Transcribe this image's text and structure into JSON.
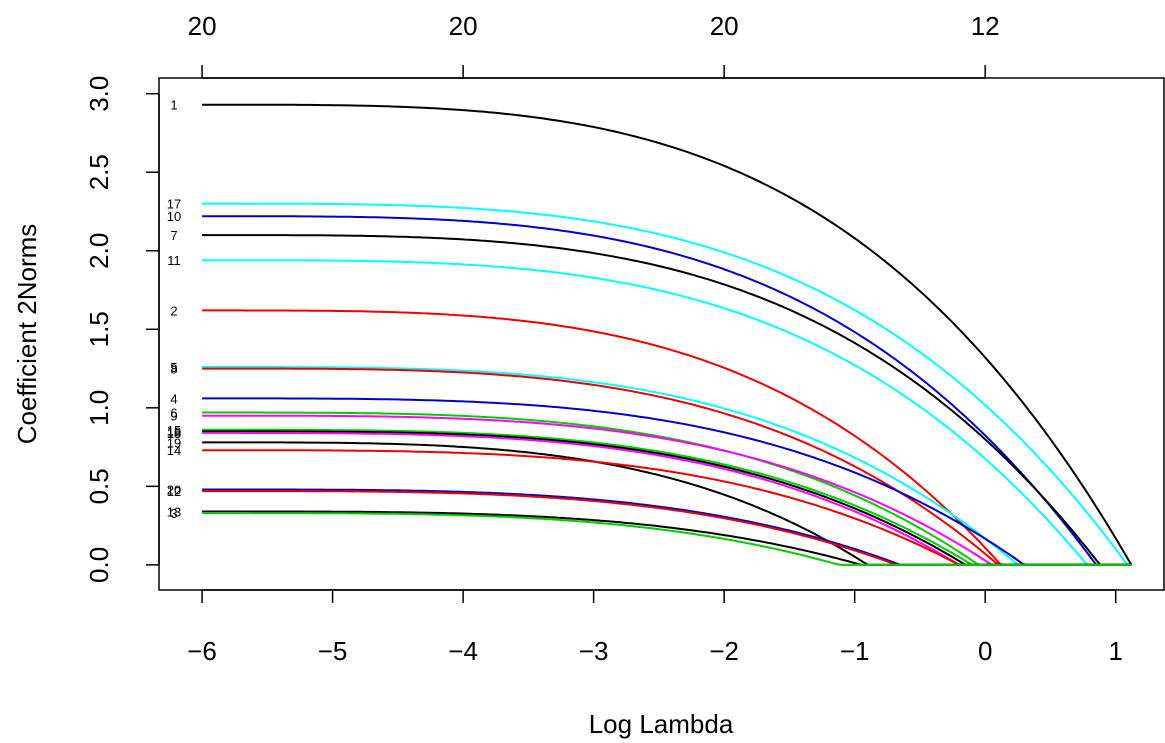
{
  "chart_data": {
    "type": "line",
    "title": "",
    "xlabel": "Log Lambda",
    "ylabel": "Coefficient 2Norms",
    "xlim": [
      -6.33,
      1.37
    ],
    "ylim": [
      -0.16,
      3.1
    ],
    "x_ticks": [
      -6,
      -5,
      -4,
      -3,
      -2,
      -1,
      0,
      1
    ],
    "x_tick_labels": [
      "−6",
      "−5",
      "−4",
      "−3",
      "−2",
      "−1",
      "0",
      "1"
    ],
    "y_ticks": [
      0.0,
      0.5,
      1.0,
      1.5,
      2.0,
      2.5,
      3.0
    ],
    "y_tick_labels": [
      "0.0",
      "0.5",
      "1.0",
      "1.5",
      "2.0",
      "2.5",
      "3.0"
    ],
    "top_axis": {
      "ticks_x": [
        -6,
        -4,
        -2,
        0
      ],
      "labels": [
        "20",
        "20",
        "20",
        "12"
      ]
    },
    "grid": false,
    "legend": "none",
    "x_range": [
      -6.0,
      1.12
    ],
    "series": [
      {
        "label": "1",
        "color": "#000000",
        "start": 2.93,
        "zero": 1.12
      },
      {
        "label": "17",
        "color": "#00FFFF",
        "start": 2.3,
        "zero": 1.09
      },
      {
        "label": "10",
        "color": "#0000CD",
        "start": 2.22,
        "zero": 0.85
      },
      {
        "label": "7",
        "color": "#000000",
        "start": 2.1,
        "zero": 0.88
      },
      {
        "label": "11",
        "color": "#00FFFF",
        "start": 1.94,
        "zero": 0.78
      },
      {
        "label": "2",
        "color": "#EE0000",
        "start": 1.62,
        "zero": 0.12
      },
      {
        "label": "5",
        "color": "#00FFFF",
        "start": 1.26,
        "zero": 0.25
      },
      {
        "label": "8",
        "color": "#EE0000",
        "start": 1.25,
        "zero": 0.1
      },
      {
        "label": "4",
        "color": "#0000CD",
        "start": 1.06,
        "zero": 0.3
      },
      {
        "label": "6",
        "color": "#00CD00",
        "start": 0.97,
        "zero": -0.05
      },
      {
        "label": "9",
        "color": "#FF00FF",
        "start": 0.95,
        "zero": 0.05
      },
      {
        "label": "15",
        "color": "#00CD00",
        "start": 0.86,
        "zero": -0.1
      },
      {
        "label": "16",
        "color": "#000000",
        "start": 0.85,
        "zero": -0.15
      },
      {
        "label": "18",
        "color": "#FF00FF",
        "start": 0.84,
        "zero": -0.2
      },
      {
        "label": "19",
        "color": "#000000",
        "start": 0.78,
        "zero": -0.9
      },
      {
        "label": "14",
        "color": "#EE0000",
        "start": 0.73,
        "zero": -0.2
      },
      {
        "label": "20",
        "color": "#0000CD",
        "start": 0.48,
        "zero": -0.65
      },
      {
        "label": "12",
        "color": "#EE0000",
        "start": 0.47,
        "zero": -0.68
      },
      {
        "label": "13",
        "color": "#000000",
        "start": 0.34,
        "zero": -0.95
      },
      {
        "label": "3",
        "color": "#00CD00",
        "start": 0.33,
        "zero": -1.12
      }
    ]
  }
}
